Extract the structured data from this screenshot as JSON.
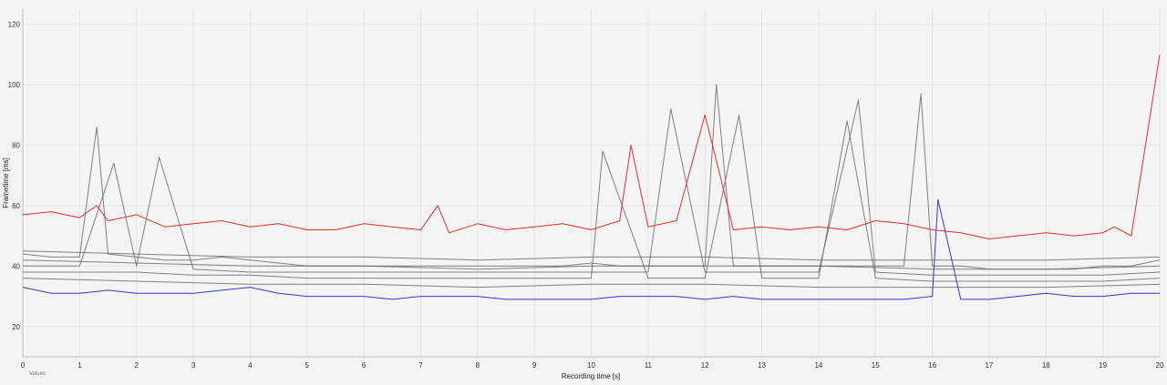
{
  "chart_data": {
    "type": "line",
    "xlabel": "Recording time [s]",
    "ylabel": "Frametime [ms]",
    "xlim": [
      0,
      20
    ],
    "ylim": [
      10,
      125
    ],
    "x_ticks": [
      0,
      1,
      2,
      3,
      4,
      5,
      6,
      7,
      8,
      9,
      10,
      11,
      12,
      13,
      14,
      15,
      16,
      17,
      18,
      19,
      20
    ],
    "y_ticks": [
      20,
      40,
      60,
      80,
      100,
      120
    ],
    "grid": true,
    "legend": {
      "position": "bottom-left",
      "label": "Values"
    },
    "colors": {
      "highlight_high": "#e03030",
      "highlight_low": "#3535d0",
      "others": "#6a6a6a",
      "grid": "#e4e4e4"
    },
    "series": [
      {
        "color": "#e03030",
        "x": [
          0,
          0.5,
          1,
          1.3,
          1.5,
          2,
          2.5,
          3,
          3.5,
          4,
          4.5,
          5,
          5.5,
          6,
          6.5,
          7,
          7.3,
          7.5,
          8,
          8.5,
          9,
          9.5,
          10,
          10.5,
          10.7,
          11,
          11.5,
          12,
          12.2,
          12.5,
          13,
          13.5,
          14,
          14.5,
          15,
          15.5,
          16,
          16.5,
          17,
          17.5,
          18,
          18.5,
          19,
          19.2,
          19.5,
          20
        ],
        "values": [
          57,
          58,
          56,
          60,
          55,
          57,
          53,
          54,
          55,
          53,
          54,
          52,
          52,
          54,
          53,
          52,
          60,
          51,
          54,
          52,
          53,
          54,
          52,
          55,
          80,
          53,
          55,
          90,
          75,
          52,
          53,
          52,
          53,
          52,
          55,
          54,
          52,
          51,
          49,
          50,
          51,
          50,
          51,
          53,
          50,
          110
        ]
      },
      {
        "color": "#3535d0",
        "x": [
          0,
          0.5,
          1,
          1.5,
          2,
          2.5,
          3,
          3.5,
          4,
          4.5,
          5,
          5.5,
          6,
          6.5,
          7,
          7.5,
          8,
          8.5,
          9,
          9.5,
          10,
          10.5,
          11,
          11.5,
          12,
          12.5,
          13,
          13.5,
          14,
          14.5,
          15,
          15.5,
          16,
          16.1,
          16.5,
          17,
          17.5,
          18,
          18.5,
          19,
          19.5,
          20
        ],
        "values": [
          33,
          31,
          31,
          32,
          31,
          31,
          31,
          32,
          33,
          31,
          30,
          30,
          30,
          29,
          30,
          30,
          30,
          29,
          29,
          29,
          29,
          30,
          30,
          30,
          29,
          30,
          29,
          29,
          29,
          29,
          29,
          29,
          30,
          62,
          29,
          29,
          30,
          31,
          30,
          30,
          31,
          31
        ]
      },
      {
        "color": "#6a6a6a",
        "x": [
          0,
          0.5,
          1,
          1.3,
          1.5,
          2,
          2.5,
          3,
          3.5,
          4,
          4.5,
          5,
          5.5,
          6,
          6.5,
          7,
          7.5,
          8,
          8.5,
          9,
          9.5,
          10,
          10.5,
          11,
          11.5,
          12,
          12.2,
          12.5,
          13,
          13.5,
          14,
          14.5,
          15,
          15.5,
          15.8,
          16,
          16.5,
          17,
          17.5,
          18,
          18.5,
          19,
          19.5,
          20
        ],
        "values": [
          44,
          43,
          43,
          86,
          44,
          43,
          42,
          42,
          43,
          42,
          41,
          40,
          40,
          40,
          40,
          40,
          40,
          40,
          40,
          40,
          40,
          41,
          40,
          40,
          40,
          40,
          100,
          40,
          40,
          40,
          40,
          40,
          40,
          40,
          97,
          40,
          40,
          39,
          39,
          39,
          39,
          40,
          40,
          42
        ]
      },
      {
        "color": "#6a6a6a",
        "x": [
          0,
          1,
          1.6,
          2,
          2.4,
          3,
          4,
          5,
          6,
          7,
          8,
          9,
          10,
          11,
          11.4,
          12,
          13,
          14,
          14.7,
          15,
          16,
          17,
          18,
          19,
          20
        ],
        "values": [
          40,
          40,
          74,
          40,
          76,
          39,
          38,
          38,
          38,
          38,
          38,
          38,
          38,
          38,
          92,
          38,
          38,
          38,
          95,
          38,
          37,
          37,
          37,
          37,
          38
        ]
      },
      {
        "color": "#6a6a6a",
        "x": [
          0,
          1,
          2,
          3,
          4,
          5,
          6,
          7,
          8,
          9,
          10,
          10.2,
          11,
          12,
          12.6,
          13,
          14,
          14.5,
          15,
          16,
          17,
          18,
          19,
          20
        ],
        "values": [
          38,
          38,
          38,
          37,
          37,
          36,
          36,
          36,
          36,
          36,
          36,
          78,
          36,
          36,
          90,
          36,
          36,
          88,
          36,
          35,
          35,
          35,
          35,
          36
        ]
      },
      {
        "color": "#6a6a6a",
        "x": [
          0,
          2,
          4,
          6,
          8,
          10,
          12,
          14,
          16,
          18,
          20
        ],
        "values": [
          42,
          41,
          40,
          40,
          39,
          40,
          40,
          40,
          39,
          39,
          40
        ]
      },
      {
        "color": "#6a6a6a",
        "x": [
          0,
          2,
          4,
          6,
          8,
          10,
          12,
          14,
          16,
          18,
          20
        ],
        "values": [
          36,
          35,
          34,
          34,
          33,
          34,
          34,
          33,
          33,
          33,
          34
        ]
      },
      {
        "color": "#6a6a6a",
        "x": [
          0,
          2,
          4,
          6,
          8,
          10,
          12,
          14,
          16,
          18,
          20
        ],
        "values": [
          45,
          44,
          43,
          43,
          42,
          43,
          43,
          42,
          42,
          42,
          43
        ]
      }
    ]
  }
}
